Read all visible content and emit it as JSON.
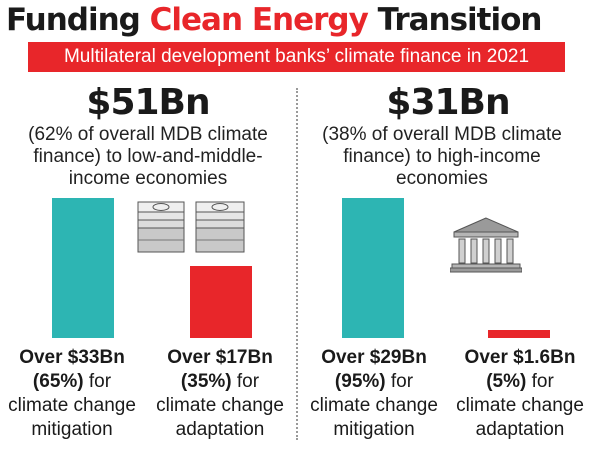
{
  "title": {
    "part1": "Funding ",
    "accent": "Clean Energy",
    "part2": " Transition"
  },
  "subtitle": "Multilateral development banks’ climate finance in 2021",
  "colors": {
    "accent": "#e8262a",
    "teal": "#2db5b3"
  },
  "icons": {
    "left": "cash-stack-icon",
    "right": "bank-building-icon"
  },
  "panels": [
    {
      "amount": "$51Bn",
      "desc": "(62% of overall MDB climate finance) to low-and-middle-income economies",
      "bars": [
        {
          "value_label": "Over $33Bn",
          "percent_label": "(65%)",
          "for": " for",
          "line3": "climate change",
          "line4": "mitigation"
        },
        {
          "value_label": "Over $17Bn",
          "percent_label": "(35%)",
          "for": " for",
          "line3": "climate change",
          "line4": "adaptation"
        }
      ]
    },
    {
      "amount": "$31Bn",
      "desc": "(38% of overall MDB climate finance) to high-income economies",
      "bars": [
        {
          "value_label": "Over $29Bn",
          "percent_label": "(95%)",
          "for": " for",
          "line3": "climate change",
          "line4": "mitigation"
        },
        {
          "value_label": "Over $1.6Bn",
          "percent_label": "(5%)",
          "for": " for",
          "line3": "climate change",
          "line4": "adaptation"
        }
      ]
    }
  ],
  "chart_data": [
    {
      "type": "bar",
      "categories": [
        "climate change mitigation",
        "climate change adaptation"
      ],
      "values": [
        33,
        17
      ],
      "percents": [
        65,
        35
      ],
      "colors": [
        "#2db5b3",
        "#e8262a"
      ],
      "title": "$51Bn",
      "units": "Bn"
    },
    {
      "type": "bar",
      "categories": [
        "climate change mitigation",
        "climate change adaptation"
      ],
      "values": [
        29,
        1.6
      ],
      "percents": [
        95,
        5
      ],
      "colors": [
        "#2db5b3",
        "#e8262a"
      ],
      "title": "$31Bn",
      "units": "Bn"
    }
  ]
}
